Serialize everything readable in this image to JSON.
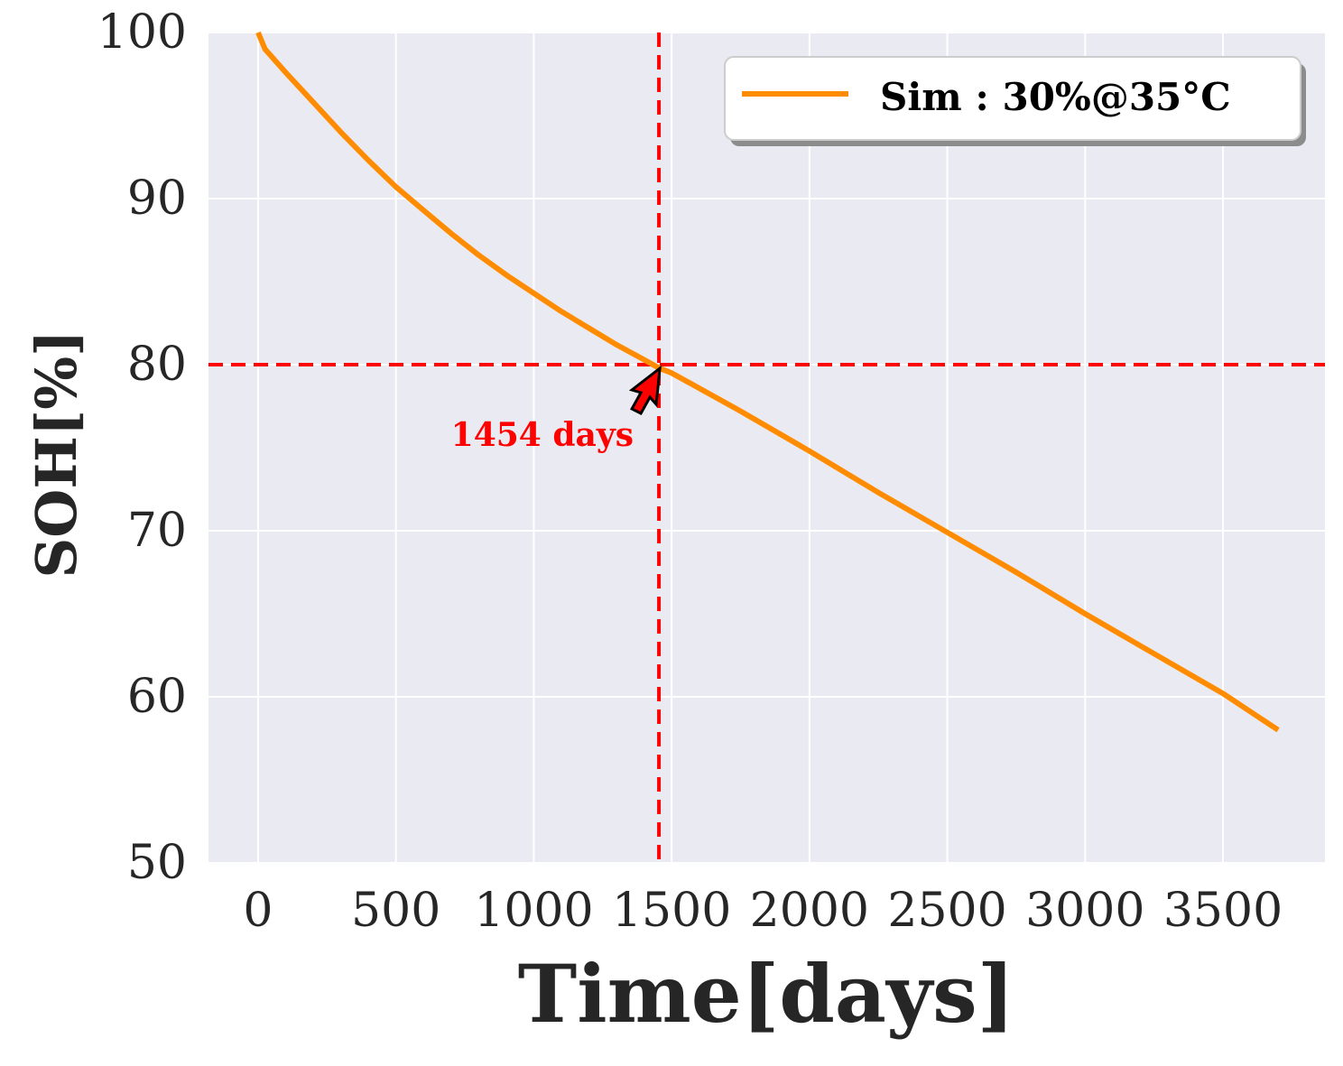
{
  "chart_data": {
    "type": "line",
    "xlabel": "Time[days]",
    "ylabel": "SOH[%]",
    "xlim": [
      -180,
      3870
    ],
    "ylim": [
      50,
      100
    ],
    "xticks": [
      0,
      500,
      1000,
      1500,
      2000,
      2500,
      3000,
      3500
    ],
    "yticks": [
      50,
      60,
      70,
      80,
      90,
      100
    ],
    "xtick_labels": [
      "0",
      "500",
      "1000",
      "1500",
      "2000",
      "2500",
      "3000",
      "3500"
    ],
    "ytick_labels": [
      "50",
      "60",
      "70",
      "80",
      "90",
      "100"
    ],
    "grid": true,
    "legend_position": "top-right",
    "series": [
      {
        "name": "Sim :  30%@35°C",
        "color": "#ff8c00",
        "x": [
          0,
          25,
          100,
          200,
          300,
          400,
          500,
          600,
          700,
          800,
          900,
          1000,
          1100,
          1200,
          1300,
          1400,
          1454,
          1500,
          1750,
          2000,
          2250,
          2500,
          2750,
          3000,
          3250,
          3500,
          3700
        ],
        "y": [
          100,
          99.0,
          97.6,
          95.8,
          94.0,
          92.3,
          90.7,
          89.3,
          87.9,
          86.6,
          85.4,
          84.3,
          83.2,
          82.2,
          81.2,
          80.3,
          79.8,
          79.5,
          77.2,
          74.8,
          72.3,
          69.9,
          67.5,
          65.0,
          62.6,
          60.2,
          58.0
        ]
      }
    ],
    "reference_lines": {
      "horizontal_y": 80,
      "vertical_x": 1454,
      "color": "#ff0000"
    },
    "annotation": {
      "text": "1454 days",
      "x": 1454,
      "y": 80,
      "color": "#ff0000"
    }
  }
}
